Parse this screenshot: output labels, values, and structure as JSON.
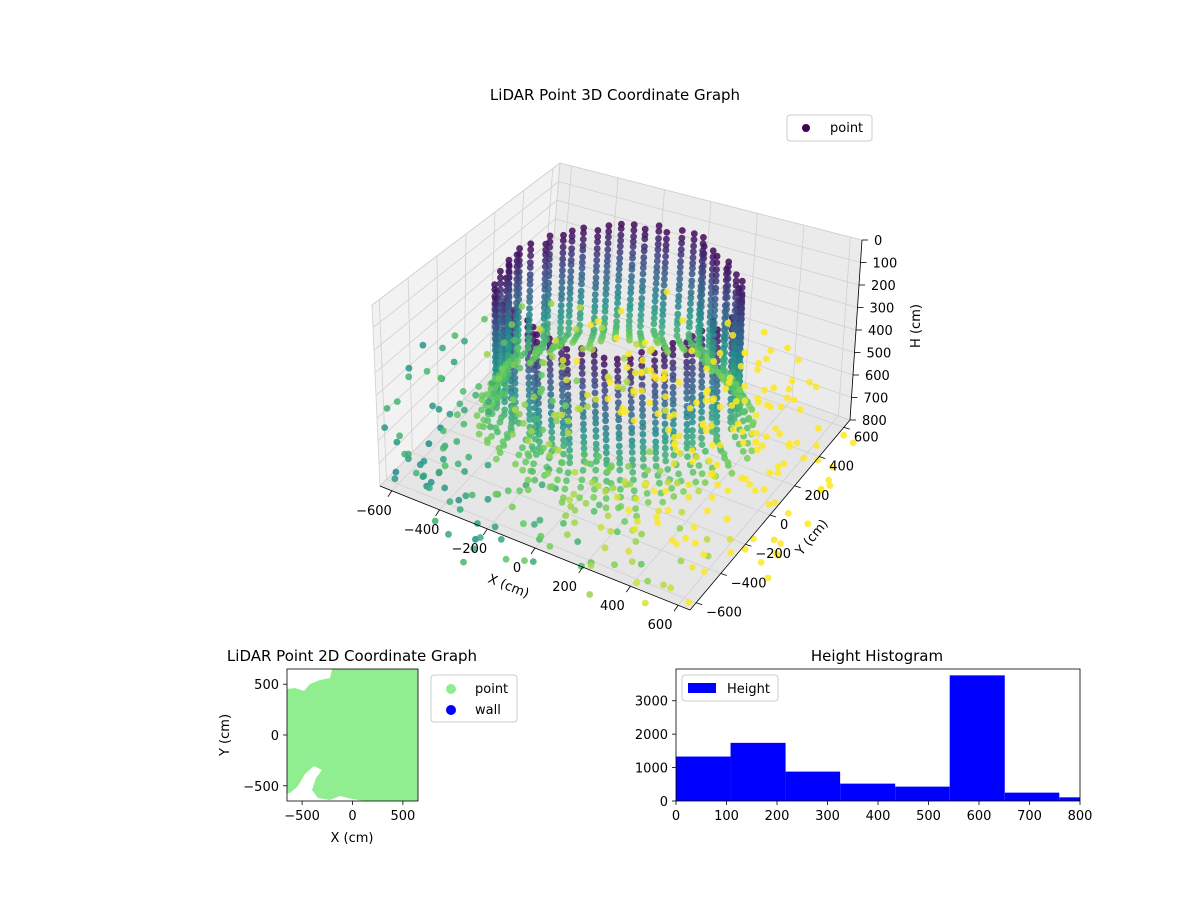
{
  "figure": {
    "colors": {
      "cmap_low": "#440154",
      "cmap_mid": "#21918c",
      "cmap_high": "#fde725",
      "point2d": "#90ee90",
      "wall": "#0000ff",
      "hist": "#0000ff"
    }
  },
  "chart_data": [
    {
      "type": "scatter",
      "projection": "3d",
      "title": "LiDAR Point 3D Coordinate Graph",
      "xlabel": "X (cm)",
      "ylabel": "Y (cm)",
      "zlabel": "H (cm)",
      "x_ticks": [
        "−600",
        "−400",
        "−200",
        "0",
        "200",
        "400",
        "600"
      ],
      "y_ticks": [
        "−600",
        "−400",
        "−200",
        "0",
        "200",
        "400",
        "600"
      ],
      "z_ticks": [
        "0",
        "100",
        "200",
        "300",
        "400",
        "500",
        "600",
        "700",
        "800"
      ],
      "xlim": [
        -650,
        650
      ],
      "ylim": [
        -650,
        650
      ],
      "zlim": [
        0,
        800
      ],
      "z_inverted": true,
      "colormap": "viridis",
      "legend": [
        {
          "label": "point",
          "marker": "circle"
        }
      ],
      "legend_position": "upper-right",
      "grid": true,
      "structure": "cylindrical wall of points, radius ~450 cm, heights 0-650 cm, scattered floor points near 650-800 cm"
    },
    {
      "type": "scatter",
      "title": "LiDAR Point 2D Coordinate Graph",
      "xlabel": "X (cm)",
      "ylabel": "Y (cm)",
      "x_ticks": [
        "−500",
        "0",
        "500"
      ],
      "y_ticks": [
        "−500",
        "0",
        "500"
      ],
      "xlim": [
        -650,
        650
      ],
      "ylim": [
        -650,
        650
      ],
      "series": [
        {
          "name": "point",
          "color": "#90ee90"
        },
        {
          "name": "wall",
          "color": "#0000ff"
        }
      ],
      "legend_position": "outside-right"
    },
    {
      "type": "bar",
      "title": "Height Histogram",
      "bin_edges": [
        0,
        108,
        217,
        325,
        434,
        542,
        651,
        759,
        868
      ],
      "values": [
        1330,
        1740,
        880,
        520,
        430,
        3760,
        250,
        110
      ],
      "x_ticks": [
        "0",
        "100",
        "200",
        "300",
        "400",
        "500",
        "600",
        "700",
        "800"
      ],
      "y_ticks": [
        "0",
        "1000",
        "2000",
        "3000"
      ],
      "xlim": [
        0,
        800
      ],
      "ylim": [
        0,
        3950
      ],
      "series": [
        {
          "name": "Height",
          "color": "#0000ff"
        }
      ],
      "legend_position": "upper-left"
    }
  ]
}
